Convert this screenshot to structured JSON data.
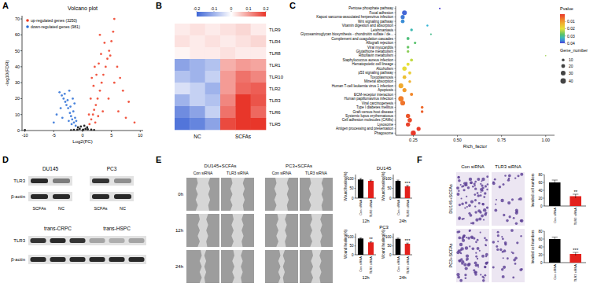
{
  "chart_data": [
    {
      "type": "scatter",
      "title": "Volcano plot",
      "x_label": "Log2(FC)",
      "y_label": "-log10(FDR)",
      "xlim": [
        -10.5,
        10.5
      ],
      "xticks": [
        -10,
        -5,
        0,
        5,
        10
      ],
      "ylim": [
        0,
        72
      ],
      "yticks": [
        0,
        10,
        20,
        30,
        40,
        50,
        60,
        70
      ],
      "grid": false,
      "legend": "upper left",
      "series": [
        {
          "name": "up-regulated genes (3250)",
          "color": "#ee3b22",
          "x": [
            1.2,
            1.5,
            1.8,
            2,
            2.3,
            2.6,
            3,
            3.3,
            3.6,
            4,
            4.3,
            4.6,
            5,
            5.3,
            5.5,
            4.8,
            6,
            6.5,
            7,
            8,
            9,
            1.4,
            1.9,
            2.4,
            2.8,
            3.2,
            3.8,
            1.1,
            2.2,
            3.5,
            4.5,
            5.5,
            6.2,
            7.5,
            2.7,
            1.6,
            2.1,
            3
          ],
          "values": [
            4,
            7,
            10,
            13,
            16,
            20,
            25,
            30,
            35,
            40,
            45,
            50,
            56,
            62,
            70,
            47,
            40,
            33,
            25,
            18,
            5,
            20,
            28,
            35,
            42,
            48,
            55,
            10,
            5,
            12,
            20,
            30,
            12,
            8,
            9,
            33,
            40,
            60
          ]
        },
        {
          "name": "down-regulated genes (981)",
          "color": "#2b6fd6",
          "x": [
            -1.2,
            -1.5,
            -1.8,
            -2,
            -2.2,
            -2.5,
            -2.8,
            -3,
            -3.3,
            -3.6,
            -4,
            -1.3,
            -1.6,
            -2.1,
            -2.6,
            -3.1,
            -1.1,
            -1.9,
            -2.4,
            -3.5,
            -4.5,
            -1.4,
            -1.7,
            -2.3,
            -5,
            -3.8
          ],
          "values": [
            3,
            5,
            7,
            9,
            11,
            14,
            16,
            18,
            20,
            22,
            24,
            8,
            12,
            15,
            19,
            23,
            6,
            4,
            6,
            8,
            10,
            17,
            20,
            25,
            5,
            14
          ]
        },
        {
          "color": "#000000",
          "x": [
            0,
            -0.5,
            0.5,
            -0.8,
            0.8,
            0.3,
            -0.3,
            0.1,
            -0.9,
            0.9,
            -10,
            -1.5,
            1.5,
            -2,
            2
          ],
          "values": [
            0,
            1,
            1,
            2,
            2,
            3,
            2.5,
            0.5,
            0.5,
            0.8,
            0.3,
            0.4,
            0.5,
            0.2,
            0.3
          ]
        }
      ]
    },
    {
      "type": "heatmap",
      "x": [
        null,
        "NC",
        null,
        null,
        "SCFAs",
        null
      ],
      "y": [
        "TLR9",
        "TLR4",
        "TLR8",
        "TLR1",
        "TLR10",
        "TLR2",
        "TLR3",
        "TLR6",
        "TLR5"
      ],
      "cells": [
        [
          0.02,
          0.03,
          0.02,
          0.03,
          0.04,
          0.02
        ],
        [
          0.03,
          0.02,
          0.03,
          0.02,
          0.03,
          0.04
        ],
        [
          0.01,
          0.02,
          0.02,
          0.03,
          0.02,
          0.02
        ],
        [
          -0.12,
          -0.1,
          -0.08,
          0.08,
          0.1,
          0.09
        ],
        [
          -0.08,
          -0.1,
          -0.06,
          0.1,
          0.14,
          0.12
        ],
        [
          -0.04,
          -0.06,
          -0.1,
          0.1,
          0.15,
          0.16
        ],
        [
          -0.1,
          -0.06,
          -0.08,
          0.12,
          0.2,
          0.17
        ],
        [
          -0.15,
          -0.12,
          -0.06,
          0.14,
          0.2,
          0.15
        ],
        [
          -0.18,
          -0.16,
          -0.12,
          0.18,
          0.2,
          0.2
        ]
      ],
      "colorbar": {
        "range": [
          -0.2,
          0.2
        ],
        "ticks": [
          -0.2,
          -0.1,
          0,
          0.1,
          0.2
        ]
      }
    },
    {
      "type": "scatter",
      "orientation": "horizontal",
      "x_label": "Rich_factor",
      "xlim": [
        0.15,
        1.05
      ],
      "xticks": [
        0.25,
        {
          "value": 0.5,
          "label": "0.50"
        },
        0.75,
        {
          "value": 1,
          "label": "1.00"
        }
      ],
      "categories": [
        "Pentose phosphate pathway",
        "Focal adhesion",
        "Kaposi sarcoma-associated herpesvirus infection",
        "Wnt signaling pathway",
        "Vitamin digestion and absorption",
        "Leishmaniasis",
        "Glycosaminoglycan biosynthesis - chondroitin sulfate / de...",
        "Complement and coagulation cascades",
        "Allograft rejection",
        "Viral myocarditis",
        "Glutathione metabolism",
        "Riboflavin metabolism",
        "Staphylococcus aureus infection",
        "Hematopoietic cell lineage",
        "Alcoholism",
        "p53 signaling pathway",
        "Toxoplasmosis",
        "Mineral absorption",
        "Human T-cell leukemia virus 1 infection",
        "Apoptosis",
        "ECM-receptor interaction",
        "Human papillomavirus infection",
        "Viral carcinogenesis",
        "Type I diabetes mellitus",
        "Graft-versus-host disease",
        "Systemic lupus erythematosus",
        "Cell adhesion molecules (CAMs)",
        "Lysosome",
        "Antigen processing and presentation",
        "Phagosome"
      ],
      "values": [
        0.4,
        0.2,
        0.19,
        0.19,
        0.33,
        0.24,
        0.35,
        0.22,
        0.26,
        0.22,
        0.22,
        1.0,
        0.24,
        0.22,
        0.2,
        0.23,
        0.2,
        0.23,
        0.18,
        0.2,
        0.24,
        0.18,
        0.19,
        0.3,
        0.3,
        0.22,
        0.23,
        0.22,
        0.28,
        0.25
      ],
      "pvalue": [
        0.04,
        0.038,
        0.037,
        0.036,
        0.034,
        0.032,
        0.03,
        0.029,
        0.028,
        0.027,
        0.025,
        0.024,
        0.022,
        0.02,
        0.019,
        0.017,
        0.015,
        0.013,
        0.012,
        0.01,
        0.008,
        0.007,
        0.006,
        0.005,
        0.004,
        0.003,
        0.002,
        0.001,
        0.0005,
        0.0002
      ],
      "gene_number": [
        4,
        30,
        22,
        18,
        5,
        10,
        4,
        12,
        8,
        10,
        9,
        2,
        12,
        14,
        25,
        12,
        18,
        10,
        30,
        22,
        14,
        38,
        32,
        10,
        10,
        24,
        26,
        24,
        22,
        34
      ],
      "pvalue_colorbar": {
        "title": "Pvalue",
        "range": [
          0,
          0.04
        ],
        "ticks": [
          0.01,
          0.02,
          0.03,
          0.04
        ]
      },
      "size_legend": {
        "title": "Gene_number",
        "values": [
          10,
          20,
          30,
          40
        ]
      }
    },
    {
      "type": "bar",
      "title": "DU145",
      "x_label": "12h",
      "y_label": "Wound healing(%)",
      "categories": [
        "Con siRNA",
        "TLR3 siRNA"
      ],
      "values": [
        95,
        88
      ],
      "errors": [
        5,
        4
      ],
      "significance": [
        null,
        null
      ],
      "colors": [
        "#000000",
        "#e3211c"
      ],
      "ylim": [
        0,
        120
      ],
      "yticks": [
        0,
        50,
        100
      ]
    },
    {
      "type": "bar",
      "x_label": "24h",
      "y_label": "Wound healing(%)",
      "categories": [
        "Con siRNA",
        "TLR3 siRNA"
      ],
      "values": [
        88,
        60
      ],
      "errors": [
        4,
        5
      ],
      "significance": [
        null,
        "***"
      ],
      "colors": [
        "#000000",
        "#e3211c"
      ],
      "ylim": [
        0,
        120
      ],
      "yticks": [
        0,
        50,
        100
      ]
    },
    {
      "type": "bar",
      "title": "PC3",
      "x_label": "12h",
      "y_label": "Wound healing(%)",
      "categories": [
        "Con siRNA",
        "TLR3 siRNA"
      ],
      "values": [
        92,
        70
      ],
      "errors": [
        3,
        4
      ],
      "significance": [
        null,
        "**"
      ],
      "colors": [
        "#000000",
        "#e3211c"
      ],
      "ylim": [
        0,
        120
      ],
      "yticks": [
        0,
        50,
        100
      ]
    },
    {
      "type": "bar",
      "x_label": "24h",
      "y_label": "Wound healing(%)",
      "categories": [
        "Con siRNA",
        "TLR3 siRNA"
      ],
      "values": [
        90,
        62
      ],
      "errors": [
        4,
        4
      ],
      "significance": [
        null,
        "***"
      ],
      "colors": [
        "#000000",
        "#e3211c"
      ],
      "ylim": [
        0,
        120
      ],
      "yticks": [
        0,
        50,
        100
      ]
    },
    {
      "type": "bar",
      "y_label": "Invaded cell numbers",
      "categories": [
        "Con siRNA",
        "TLR3 siRNA"
      ],
      "values": [
        60,
        25
      ],
      "errors": [
        6,
        5
      ],
      "significance": [
        null,
        "**"
      ],
      "colors": [
        "#000000",
        "#e3211c"
      ],
      "ylim": [
        0,
        80
      ],
      "yticks": [
        0,
        20,
        40,
        60,
        80
      ]
    },
    {
      "type": "bar",
      "y_label": "Invaded cell numbers",
      "categories": [
        "Con siRNA",
        "TLR3 siRNA"
      ],
      "values": [
        60,
        22
      ],
      "errors": [
        5,
        4
      ],
      "significance": [
        null,
        "***"
      ],
      "colors": [
        "#000000",
        "#e3211c"
      ],
      "ylim": [
        0,
        80
      ],
      "yticks": [
        0,
        20,
        40,
        60,
        80
      ]
    }
  ],
  "figure": {
    "panel_labels": [
      "A",
      "B",
      "C",
      "D",
      "E",
      "F"
    ],
    "blots": [
      {
        "groups": [
          "DU145",
          "PC3"
        ],
        "lanes": [
          "SCFAs",
          "NC",
          "SCFAs",
          "NC"
        ],
        "rows": [
          {
            "label": "TLR3",
            "intensity": [
              0.9,
              0.5,
              0.85,
              0.4
            ]
          },
          {
            "label": "β-actin",
            "intensity": [
              0.9,
              0.9,
              0.9,
              0.9
            ]
          }
        ]
      },
      {
        "groups": [
          "trans-CRPC",
          "trans-HSPC"
        ],
        "lanes": [
          null,
          null,
          null,
          null,
          null,
          null
        ],
        "rows": [
          {
            "label": "TLR3",
            "intensity": [
              0.85,
              0.9,
              0.85,
              0.3,
              0.25,
              0.3
            ]
          },
          {
            "label": "β-actin",
            "intensity": [
              0.9,
              0.9,
              0.9,
              0.9,
              0.9,
              0.9
            ]
          }
        ]
      }
    ],
    "wound": {
      "columns": [
        "DU145+SCFAs",
        "PC3+SCFAs"
      ],
      "conditions": [
        "Con siRNA",
        "TLR3 siRNA"
      ],
      "rows": [
        "0h",
        "12h",
        "24h"
      ]
    },
    "transwell": {
      "columns": [
        "Con siRNA",
        "TLR3 siRNA"
      ],
      "rows": [
        "DU145+SCFAs",
        "PC3+SCFAs"
      ]
    }
  }
}
